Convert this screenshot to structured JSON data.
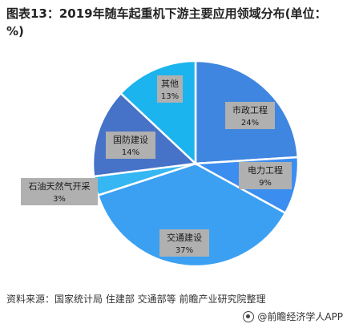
{
  "chart_data": {
    "type": "pie",
    "title": "图表13：2019年随车起重机下游主要应用领域分布(单位：%)",
    "slices": [
      {
        "label": "市政工程",
        "value_label": "24%",
        "value": 24,
        "color": "#3f86e0"
      },
      {
        "label": "电力工程",
        "value_label": "9%",
        "value": 9,
        "color": "#3b8ef0"
      },
      {
        "label": "交通建设",
        "value_label": "37%",
        "value": 37,
        "color": "#3ba0f2"
      },
      {
        "label": "石油天然气开采",
        "value_label": "3%",
        "value": 3,
        "color": "#36b6f2"
      },
      {
        "label": "国防建设",
        "value_label": "14%",
        "value": 14,
        "color": "#4672c8"
      },
      {
        "label": "其他",
        "value_label": "13%",
        "value": 13,
        "color": "#1cb4ee"
      }
    ],
    "label_box_color": "#b0b0b0"
  },
  "footer": {
    "source": "资料来源：国家统计局 住建部 交通部等 前瞻产业研究院整理",
    "brand": "@前瞻经济学人APP"
  }
}
